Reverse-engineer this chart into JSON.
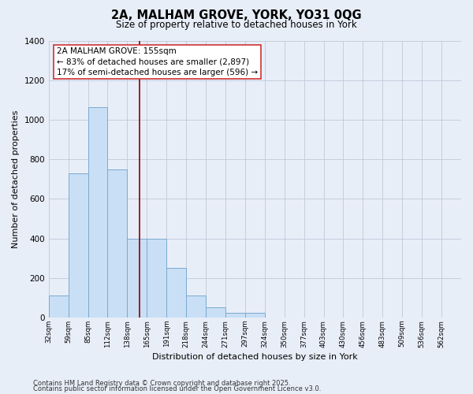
{
  "title": "2A, MALHAM GROVE, YORK, YO31 0QG",
  "subtitle": "Size of property relative to detached houses in York",
  "xlabel": "Distribution of detached houses by size in York",
  "ylabel": "Number of detached properties",
  "categories": [
    "32sqm",
    "59sqm",
    "85sqm",
    "112sqm",
    "138sqm",
    "165sqm",
    "191sqm",
    "218sqm",
    "244sqm",
    "271sqm",
    "297sqm",
    "324sqm",
    "350sqm",
    "377sqm",
    "403sqm",
    "430sqm",
    "456sqm",
    "483sqm",
    "509sqm",
    "536sqm",
    "562sqm"
  ],
  "values": [
    110,
    730,
    1065,
    750,
    400,
    400,
    250,
    110,
    50,
    25,
    25,
    0,
    0,
    0,
    0,
    0,
    0,
    0,
    0,
    0,
    0
  ],
  "bar_color": "#c9dff5",
  "bar_edge_color": "#7aaad0",
  "bar_linewidth": 0.7,
  "property_line_color": "#8b0000",
  "annotation_box_text": "2A MALHAM GROVE: 155sqm\n← 83% of detached houses are smaller (2,897)\n17% of semi-detached houses are larger (596) →",
  "ylim": [
    0,
    1400
  ],
  "yticks": [
    0,
    200,
    400,
    600,
    800,
    1000,
    1200,
    1400
  ],
  "background_color": "#e8eef8",
  "grid_color": "#c0c8d8",
  "footer_line1": "Contains HM Land Registry data © Crown copyright and database right 2025.",
  "footer_line2": "Contains public sector information licensed under the Open Government Licence v3.0.",
  "bin_width": 27,
  "prop_sqm": 155,
  "first_bin": 32
}
